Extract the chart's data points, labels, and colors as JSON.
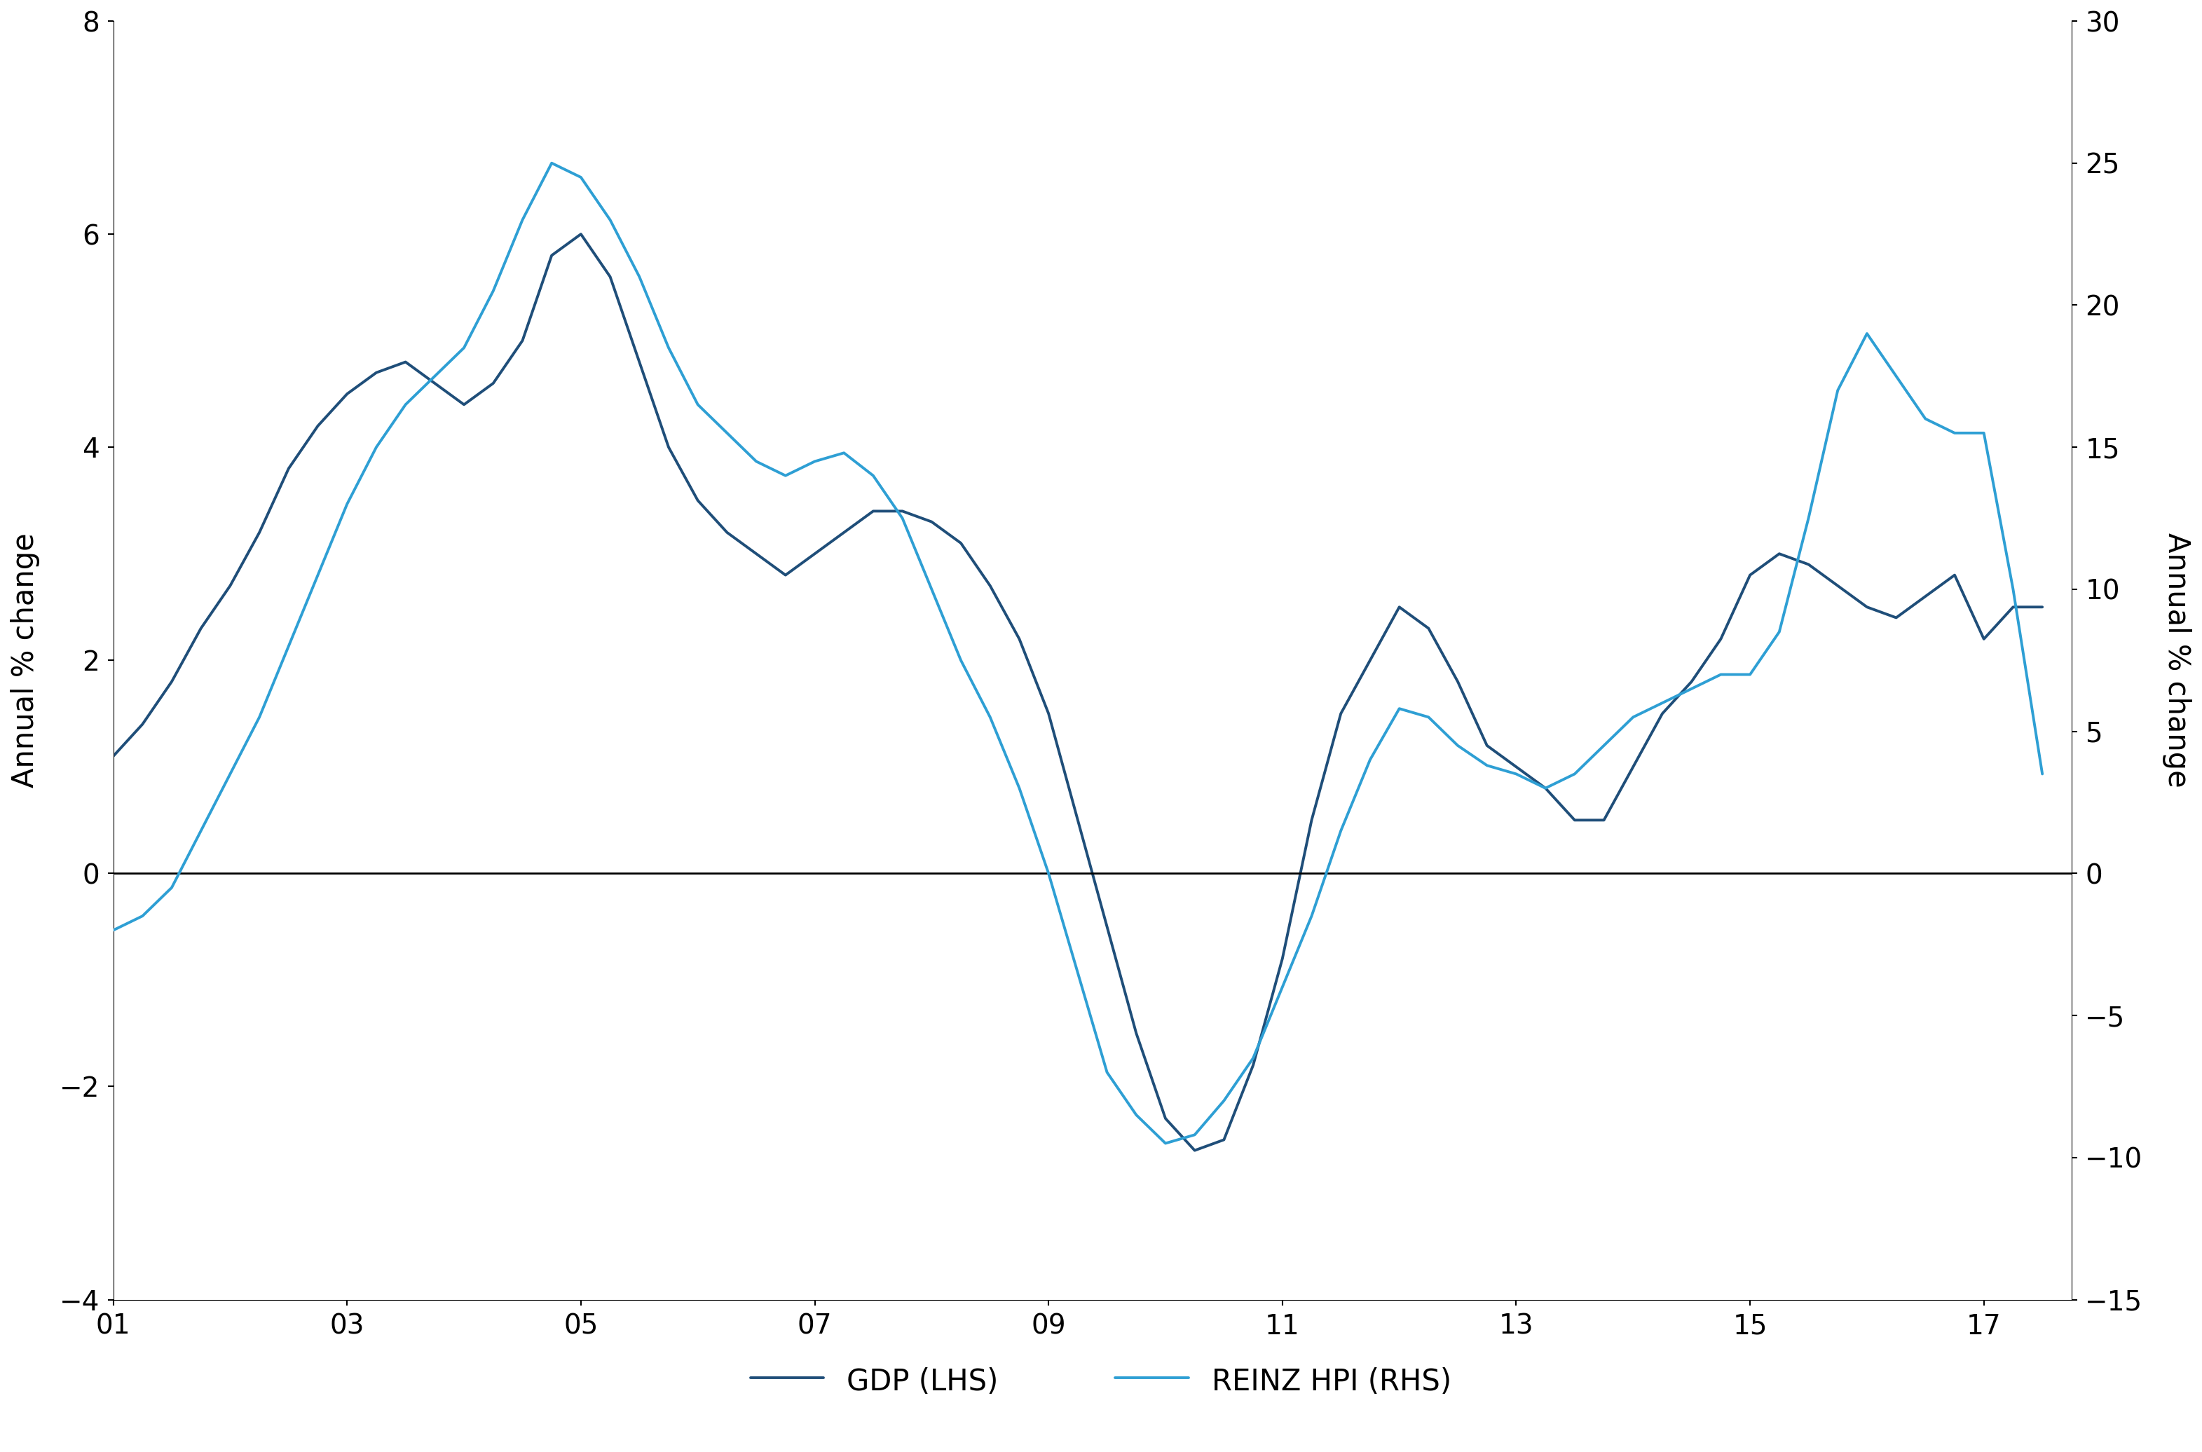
{
  "ylabel_left": "Annual % change",
  "ylabel_right": "Annual % change",
  "left_ylim": [
    -4,
    8
  ],
  "right_ylim": [
    -15,
    30
  ],
  "left_yticks": [
    -4,
    -2,
    0,
    2,
    4,
    6,
    8
  ],
  "right_yticks": [
    -15,
    -10,
    -5,
    0,
    5,
    10,
    15,
    20,
    25,
    30
  ],
  "xtick_positions": [
    2001,
    2003,
    2005,
    2007,
    2009,
    2011,
    2013,
    2015,
    2017
  ],
  "xtick_labels": [
    "01",
    "03",
    "05",
    "07",
    "09",
    "11",
    "13",
    "15",
    "17"
  ],
  "gdp_color": "#1f4e79",
  "hpi_color": "#2e9fd4",
  "legend_gdp": "GDP (LHS)",
  "legend_hpi": "REINZ HPI (RHS)",
  "background_color": "#ffffff",
  "line_width": 2.8,
  "gdp_x": [
    2001.0,
    2001.25,
    2001.5,
    2001.75,
    2002.0,
    2002.25,
    2002.5,
    2002.75,
    2003.0,
    2003.25,
    2003.5,
    2003.75,
    2004.0,
    2004.25,
    2004.5,
    2004.75,
    2005.0,
    2005.25,
    2005.5,
    2005.75,
    2006.0,
    2006.25,
    2006.5,
    2006.75,
    2007.0,
    2007.25,
    2007.5,
    2007.75,
    2008.0,
    2008.25,
    2008.5,
    2008.75,
    2009.0,
    2009.25,
    2009.5,
    2009.75,
    2010.0,
    2010.25,
    2010.5,
    2010.75,
    2011.0,
    2011.25,
    2011.5,
    2011.75,
    2012.0,
    2012.25,
    2012.5,
    2012.75,
    2013.0,
    2013.25,
    2013.5,
    2013.75,
    2014.0,
    2014.25,
    2014.5,
    2014.75,
    2015.0,
    2015.25,
    2015.5,
    2015.75,
    2016.0,
    2016.25,
    2016.5,
    2016.75,
    2017.0,
    2017.25,
    2017.5
  ],
  "gdp_y": [
    1.1,
    1.4,
    1.8,
    2.3,
    2.7,
    3.2,
    3.8,
    4.2,
    4.5,
    4.7,
    4.8,
    4.6,
    4.4,
    4.6,
    5.0,
    5.8,
    6.0,
    5.6,
    4.8,
    4.0,
    3.5,
    3.2,
    3.0,
    2.8,
    3.0,
    3.2,
    3.4,
    3.4,
    3.3,
    3.1,
    2.7,
    2.2,
    1.5,
    0.5,
    -0.5,
    -1.5,
    -2.3,
    -2.6,
    -2.5,
    -1.8,
    -0.8,
    0.5,
    1.5,
    2.0,
    2.5,
    2.3,
    1.8,
    1.2,
    1.0,
    0.8,
    0.5,
    0.5,
    1.0,
    1.5,
    1.8,
    2.2,
    2.8,
    3.0,
    2.9,
    2.7,
    2.5,
    2.4,
    2.6,
    2.8,
    2.2,
    2.5,
    2.5
  ],
  "hpi_x": [
    2001.0,
    2001.25,
    2001.5,
    2001.75,
    2002.0,
    2002.25,
    2002.5,
    2002.75,
    2003.0,
    2003.25,
    2003.5,
    2003.75,
    2004.0,
    2004.25,
    2004.5,
    2004.75,
    2005.0,
    2005.25,
    2005.5,
    2005.75,
    2006.0,
    2006.25,
    2006.5,
    2006.75,
    2007.0,
    2007.25,
    2007.5,
    2007.75,
    2008.0,
    2008.25,
    2008.5,
    2008.75,
    2009.0,
    2009.25,
    2009.5,
    2009.75,
    2010.0,
    2010.25,
    2010.5,
    2010.75,
    2011.0,
    2011.25,
    2011.5,
    2011.75,
    2012.0,
    2012.25,
    2012.5,
    2012.75,
    2013.0,
    2013.25,
    2013.5,
    2013.75,
    2014.0,
    2014.25,
    2014.5,
    2014.75,
    2015.0,
    2015.25,
    2015.5,
    2015.75,
    2016.0,
    2016.25,
    2016.5,
    2016.75,
    2017.0,
    2017.25,
    2017.5
  ],
  "hpi_y": [
    -2.0,
    -1.5,
    -0.5,
    1.5,
    3.5,
    5.5,
    8.0,
    10.5,
    13.0,
    15.0,
    16.5,
    17.5,
    18.5,
    20.5,
    23.0,
    25.0,
    24.5,
    23.0,
    21.0,
    18.5,
    16.5,
    15.5,
    14.5,
    14.0,
    14.5,
    14.8,
    14.0,
    12.5,
    10.0,
    7.5,
    5.5,
    3.0,
    0.0,
    -3.5,
    -7.0,
    -8.5,
    -9.5,
    -9.2,
    -8.0,
    -6.5,
    -4.0,
    -1.5,
    1.5,
    4.0,
    5.8,
    5.5,
    4.5,
    3.8,
    3.5,
    3.0,
    3.5,
    4.5,
    5.5,
    6.0,
    6.5,
    7.0,
    7.0,
    8.5,
    12.5,
    17.0,
    19.0,
    17.5,
    16.0,
    15.5,
    15.5,
    10.0,
    3.5
  ]
}
